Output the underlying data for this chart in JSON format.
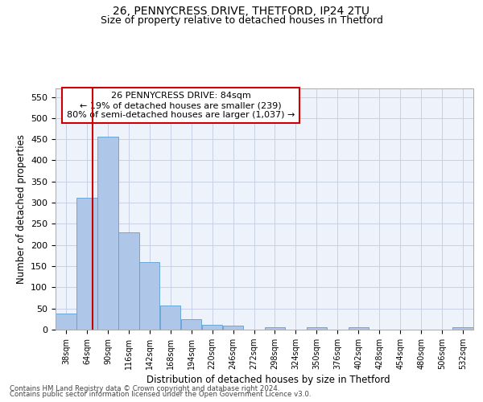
{
  "title1": "26, PENNYCRESS DRIVE, THETFORD, IP24 2TU",
  "title2": "Size of property relative to detached houses in Thetford",
  "xlabel": "Distribution of detached houses by size in Thetford",
  "ylabel": "Number of detached properties",
  "footnote1": "Contains HM Land Registry data © Crown copyright and database right 2024.",
  "footnote2": "Contains public sector information licensed under the Open Government Licence v3.0.",
  "annotation_line1": "26 PENNYCRESS DRIVE: 84sqm",
  "annotation_line2": "← 19% of detached houses are smaller (239)",
  "annotation_line3": "80% of semi-detached houses are larger (1,037) →",
  "bar_edges": [
    38,
    64,
    90,
    116,
    142,
    168,
    194,
    220,
    246,
    272,
    298,
    324,
    350,
    376,
    402,
    428,
    454,
    480,
    506,
    532,
    558
  ],
  "bar_heights": [
    38,
    312,
    456,
    230,
    160,
    57,
    25,
    12,
    10,
    0,
    5,
    0,
    6,
    0,
    5,
    0,
    0,
    0,
    0,
    5
  ],
  "bar_color": "#aec6e8",
  "bar_edge_color": "#5a9fd4",
  "reference_line_x": 84,
  "reference_line_color": "#cc0000",
  "ylim": [
    0,
    570
  ],
  "yticks": [
    0,
    50,
    100,
    150,
    200,
    250,
    300,
    350,
    400,
    450,
    500,
    550
  ],
  "bg_color": "#eef2fb",
  "grid_color": "#c8d0e8"
}
